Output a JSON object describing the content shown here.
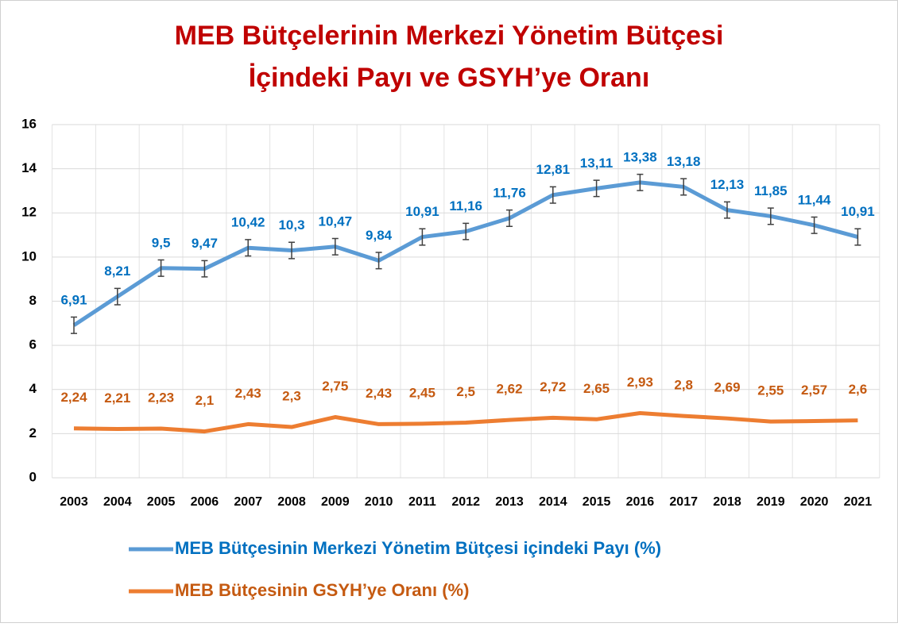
{
  "chart_data": {
    "type": "line",
    "title": [
      "MEB Bütçelerinin Merkezi Yönetim Bütçesi",
      "İçindeki Payı ve GSYH’ye Oranı"
    ],
    "categories": [
      "2003",
      "2004",
      "2005",
      "2006",
      "2007",
      "2008",
      "2009",
      "2010",
      "2011",
      "2012",
      "2013",
      "2014",
      "2015",
      "2016",
      "2017",
      "2018",
      "2019",
      "2020",
      "2021"
    ],
    "series": [
      {
        "name": "MEB Bütçesinin Merkezi Yönetim Bütçesi içindeki Payı (%)",
        "color": "#5b9bd5",
        "label_color": "#0070c0",
        "values": [
          6.91,
          8.21,
          9.5,
          9.47,
          10.42,
          10.3,
          10.47,
          9.84,
          10.91,
          11.16,
          11.76,
          12.81,
          13.11,
          13.38,
          13.18,
          12.13,
          11.85,
          11.44,
          10.91
        ],
        "value_labels": [
          "6,91",
          "8,21",
          "9,5",
          "9,47",
          "10,42",
          "10,3",
          "10,47",
          "9,84",
          "10,91",
          "11,16",
          "11,76",
          "12,81",
          "13,11",
          "13,38",
          "13,18",
          "12,13",
          "11,85",
          "11,44",
          "10,91"
        ],
        "errors": [
          0.37,
          0.37,
          0.37,
          0.37,
          0.37,
          0.37,
          0.37,
          0.37,
          0.37,
          0.37,
          0.37,
          0.37,
          0.37,
          0.37,
          0.37,
          0.37,
          0.37,
          0.37,
          0.37
        ]
      },
      {
        "name": "MEB Bütçesinin GSYH’ye Oranı (%)",
        "color": "#ed7d31",
        "label_color": "#c55a11",
        "values": [
          2.24,
          2.21,
          2.23,
          2.1,
          2.43,
          2.3,
          2.75,
          2.43,
          2.45,
          2.5,
          2.62,
          2.72,
          2.65,
          2.93,
          2.8,
          2.69,
          2.55,
          2.57,
          2.6
        ],
        "value_labels": [
          "2,24",
          "2,21",
          "2,23",
          "2,1",
          "2,43",
          "2,3",
          "2,75",
          "2,43",
          "2,45",
          "2,5",
          "2,62",
          "2,72",
          "2,65",
          "2,93",
          "2,8",
          "2,69",
          "2,55",
          "2,57",
          "2,6"
        ]
      }
    ],
    "ylim": [
      0,
      16
    ],
    "yticks": [
      0,
      2,
      4,
      6,
      8,
      10,
      12,
      14,
      16
    ],
    "grid": true,
    "legend": "bottom"
  }
}
